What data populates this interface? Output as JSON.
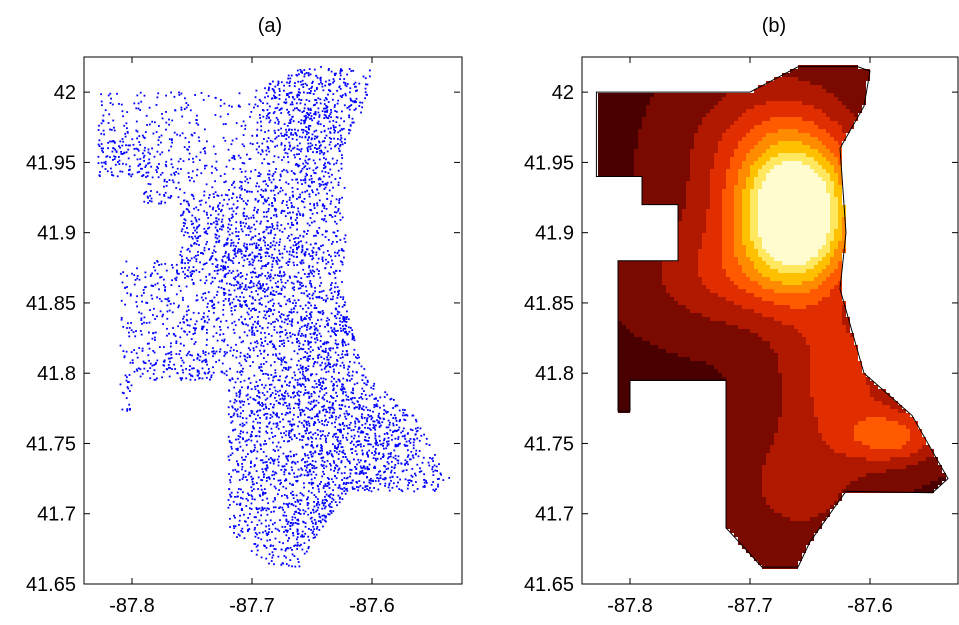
{
  "chart_data": [
    {
      "type": "scatter",
      "title": "(a)",
      "xlim": [
        -87.84,
        -87.525
      ],
      "ylim": [
        41.65,
        42.025
      ],
      "xticks": [
        -87.8,
        -87.7,
        -87.6
      ],
      "xtick_labels": [
        "-87.8",
        "-87.7",
        "-87.6"
      ],
      "yticks": [
        41.65,
        41.7,
        41.75,
        41.8,
        41.85,
        41.9,
        41.95,
        42.0
      ],
      "ytick_labels": [
        "41.65",
        "41.7",
        "41.75",
        "41.8",
        "41.85",
        "41.9",
        "41.95",
        "42"
      ],
      "grid": false,
      "point_color": "#0000ff",
      "cluster_centers": [
        {
          "x": -87.67,
          "y": 41.91
        },
        {
          "x": -87.64,
          "y": 41.97
        },
        {
          "x": -87.66,
          "y": 42.01
        },
        {
          "x": -87.75,
          "y": 41.89
        },
        {
          "x": -87.69,
          "y": 41.86
        },
        {
          "x": -87.63,
          "y": 41.84
        },
        {
          "x": -87.63,
          "y": 41.79
        },
        {
          "x": -87.58,
          "y": 41.75
        },
        {
          "x": -87.64,
          "y": 41.74
        },
        {
          "x": -87.68,
          "y": 41.78
        },
        {
          "x": -87.76,
          "y": 41.79
        },
        {
          "x": -87.62,
          "y": 41.7
        },
        {
          "x": -87.64,
          "y": 41.67
        },
        {
          "x": -87.54,
          "y": 41.68
        },
        {
          "x": -87.81,
          "y": 41.94
        },
        {
          "x": -87.71,
          "y": 41.7
        }
      ]
    },
    {
      "type": "heatmap",
      "subtype": "filled-contour",
      "title": "(b)",
      "xlim": [
        -87.84,
        -87.525
      ],
      "ylim": [
        41.65,
        42.025
      ],
      "xticks": [
        -87.8,
        -87.7,
        -87.6
      ],
      "xtick_labels": [
        "-87.8",
        "-87.7",
        "-87.6"
      ],
      "yticks": [
        41.65,
        41.7,
        41.75,
        41.8,
        41.85,
        41.9,
        41.95,
        42.0
      ],
      "ytick_labels": [
        "41.65",
        "41.7",
        "41.75",
        "41.8",
        "41.85",
        "41.9",
        "41.95",
        "42"
      ],
      "grid": false,
      "colormap": [
        "#1a0000",
        "#4a0000",
        "#7a0a00",
        "#b01800",
        "#e02e00",
        "#ff5a00",
        "#ff8c00",
        "#ffc000",
        "#ffe860",
        "#fffdd0"
      ],
      "peaks": [
        {
          "x": -87.66,
          "y": 41.91,
          "level": 1.0
        },
        {
          "x": -87.57,
          "y": 41.75,
          "level": 0.42
        },
        {
          "x": -87.625,
          "y": 41.8,
          "level": 0.35
        }
      ],
      "region_outline": [
        [
          -87.828,
          42.0
        ],
        [
          -87.76,
          42.0
        ],
        [
          -87.72,
          42.0
        ],
        [
          -87.7,
          42.0
        ],
        [
          -87.66,
          42.018
        ],
        [
          -87.635,
          42.018
        ],
        [
          -87.61,
          42.018
        ],
        [
          -87.6,
          42.015
        ],
        [
          -87.605,
          41.99
        ],
        [
          -87.625,
          41.96
        ],
        [
          -87.62,
          41.9
        ],
        [
          -87.625,
          41.86
        ],
        [
          -87.605,
          41.8
        ],
        [
          -87.565,
          41.77
        ],
        [
          -87.535,
          41.725
        ],
        [
          -87.548,
          41.715
        ],
        [
          -87.62,
          41.716
        ],
        [
          -87.65,
          41.68
        ],
        [
          -87.66,
          41.662
        ],
        [
          -87.69,
          41.662
        ],
        [
          -87.72,
          41.69
        ],
        [
          -87.72,
          41.736
        ],
        [
          -87.72,
          41.775
        ],
        [
          -87.72,
          41.795
        ],
        [
          -87.8,
          41.795
        ],
        [
          -87.8,
          41.773
        ],
        [
          -87.81,
          41.773
        ],
        [
          -87.81,
          41.88
        ],
        [
          -87.76,
          41.88
        ],
        [
          -87.76,
          41.92
        ],
        [
          -87.79,
          41.92
        ],
        [
          -87.79,
          41.94
        ],
        [
          -87.828,
          41.94
        ]
      ]
    }
  ]
}
